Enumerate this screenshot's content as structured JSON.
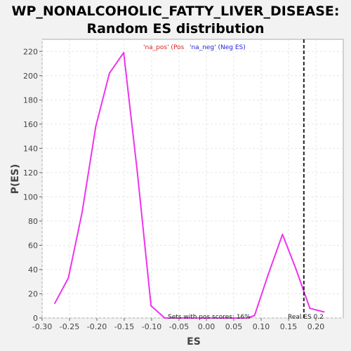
{
  "chart_data": {
    "type": "line",
    "title_line1": "WP_NONALCOHOLIC_FATTY_LIVER_DISEASE:",
    "title_line2": "Random ES distribution",
    "xlabel": "ES",
    "ylabel": "P(ES)",
    "xlim": [
      -0.3,
      0.25
    ],
    "ylim": [
      0,
      230
    ],
    "xticks": [
      -0.3,
      -0.25,
      -0.2,
      -0.15,
      -0.1,
      -0.05,
      0.0,
      0.05,
      0.1,
      0.15,
      0.2
    ],
    "xtick_labels": [
      "-0.30",
      "-0.25",
      "-0.20",
      "-0.15",
      "-0.10",
      "-0.05",
      "0.00",
      "0.05",
      "0.10",
      "0.15",
      "0.20"
    ],
    "yticks": [
      0,
      20,
      40,
      60,
      80,
      100,
      120,
      140,
      160,
      180,
      200,
      220
    ],
    "ytick_labels": [
      "0",
      "20",
      "40",
      "60",
      "80",
      "100",
      "120",
      "140",
      "160",
      "180",
      "200",
      "220"
    ],
    "grid": true,
    "series": [
      {
        "color": "#ee33ee",
        "x": [
          -0.277,
          -0.252,
          -0.227,
          -0.202,
          -0.177,
          -0.151,
          -0.126,
          -0.101,
          -0.076,
          -0.05,
          -0.025,
          0.0,
          0.025,
          0.05,
          0.075,
          0.088,
          0.113,
          0.139,
          0.164,
          0.189,
          0.215
        ],
        "y": [
          12,
          33,
          87,
          158,
          202,
          219,
          120,
          10,
          0,
          0,
          0,
          0,
          0,
          0,
          0,
          2,
          36,
          69,
          40,
          8,
          5
        ]
      }
    ],
    "real_es": 0.178,
    "real_es_label": "Real ES 0.2",
    "pos_label": "Sets with pos scores: 16%",
    "legend": {
      "pos_text": "'na_pos' (Pos",
      "pos_color": "#dd2222",
      "neg_text": "'na_neg' (Neg ES)",
      "neg_color": "#2222dd",
      "placement": "top-center"
    }
  }
}
